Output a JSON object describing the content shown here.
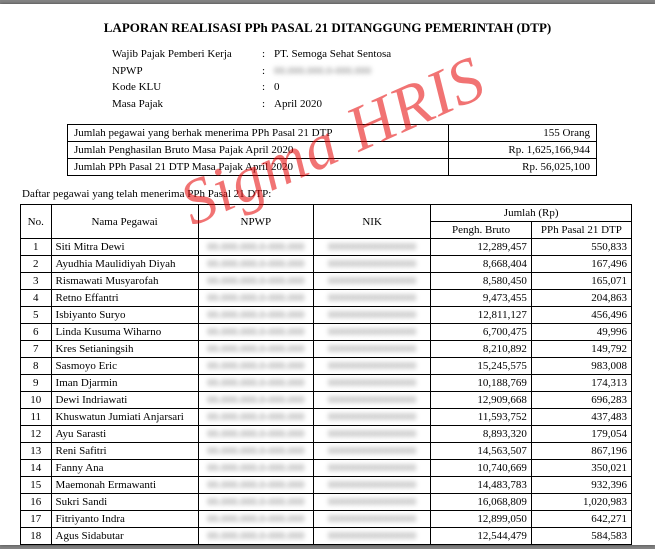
{
  "watermark": "Sigma HRIS",
  "title": "LAPORAN REALISASI PPh PASAL 21 DITANGGUNG PEMERINTAH (DTP)",
  "header": {
    "rows": [
      {
        "label": "Wajib Pajak Pemberi Kerja",
        "value": "PT. Semoga Sehat Sentosa",
        "blur": false
      },
      {
        "label": "NPWP",
        "value": "00.000.000.0-000.000",
        "blur": true
      },
      {
        "label": "Kode KLU",
        "value": "0",
        "blur": false
      },
      {
        "label": "Masa Pajak",
        "value": "April 2020",
        "blur": false
      }
    ]
  },
  "summary": {
    "rows": [
      {
        "label": "Jumlah pegawai yang berhak menerima PPh Pasal 21 DTP",
        "value": "155 Orang"
      },
      {
        "label": "Jumlah Penghasilan Bruto Masa Pajak April 2020",
        "value": "Rp. 1,625,166,944"
      },
      {
        "label": "Jumlah PPh Pasal 21 DTP Masa Pajak April 2020",
        "value": "Rp. 56,025,100"
      }
    ]
  },
  "subheading": "Daftar pegawai yang telah menerima PPh Pasal 21 DTP:",
  "table": {
    "head": {
      "no": "No.",
      "nama": "Nama Pegawai",
      "npwp": "NPWP",
      "nik": "NIK",
      "jumlah": "Jumlah (Rp)",
      "bruto": "Pengh. Bruto",
      "pph": "PPh Pasal 21 DTP"
    },
    "rows": [
      {
        "no": 1,
        "nama": "Siti Mitra Dewi",
        "bruto": "12,289,457",
        "pph": "550,833"
      },
      {
        "no": 2,
        "nama": "Ayudhia Maulidiyah Diyah",
        "bruto": "8,668,404",
        "pph": "167,496"
      },
      {
        "no": 3,
        "nama": "Rismawati Musyarofah",
        "bruto": "8,580,450",
        "pph": "165,071"
      },
      {
        "no": 4,
        "nama": "Retno Effantri",
        "bruto": "9,473,455",
        "pph": "204,863"
      },
      {
        "no": 5,
        "nama": "Isbiyanto Suryo",
        "bruto": "12,811,127",
        "pph": "456,496"
      },
      {
        "no": 6,
        "nama": "Linda Kusuma Wiharno",
        "bruto": "6,700,475",
        "pph": "49,996"
      },
      {
        "no": 7,
        "nama": "Kres Setianingsih",
        "bruto": "8,210,892",
        "pph": "149,792"
      },
      {
        "no": 8,
        "nama": "Sasmoyo Eric",
        "bruto": "15,245,575",
        "pph": "983,008"
      },
      {
        "no": 9,
        "nama": "Iman Djarmin",
        "bruto": "10,188,769",
        "pph": "174,313"
      },
      {
        "no": 10,
        "nama": "Dewi Indriawati",
        "bruto": "12,909,668",
        "pph": "696,283"
      },
      {
        "no": 11,
        "nama": "Khuswatun Jumiati Anjarsari",
        "bruto": "11,593,752",
        "pph": "437,483"
      },
      {
        "no": 12,
        "nama": "Ayu Sarasti",
        "bruto": "8,893,320",
        "pph": "179,054"
      },
      {
        "no": 13,
        "nama": "Reni Safitri",
        "bruto": "14,563,507",
        "pph": "867,196"
      },
      {
        "no": 14,
        "nama": "Fanny Ana",
        "bruto": "10,740,669",
        "pph": "350,021"
      },
      {
        "no": 15,
        "nama": "Maemonah Ermawanti",
        "bruto": "14,483,783",
        "pph": "932,396"
      },
      {
        "no": 16,
        "nama": "Sukri Sandi",
        "bruto": "16,068,809",
        "pph": "1,020,983"
      },
      {
        "no": 17,
        "nama": "Fitriyanto Indra",
        "bruto": "12,899,050",
        "pph": "642,271"
      },
      {
        "no": 18,
        "nama": "Agus Sidabutar",
        "bruto": "12,544,479",
        "pph": "584,583"
      }
    ],
    "npwp_blur": "00.000.000.0-000.000",
    "nik_blur": "0000000000000000"
  }
}
